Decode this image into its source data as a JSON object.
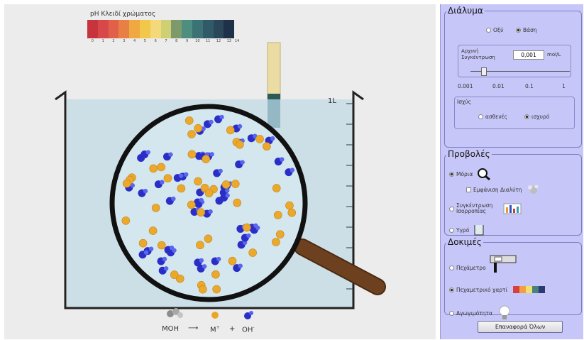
{
  "ph_scale": {
    "title": "pH Κλειδί χρώματος",
    "colors": [
      "#c8343d",
      "#d8484a",
      "#e0604a",
      "#e88045",
      "#f0a840",
      "#f2c84a",
      "#f3d97a",
      "#cfcf74",
      "#7c9a6a",
      "#4d8e80",
      "#3a7276",
      "#315a69",
      "#2a4658",
      "#1f3148"
    ],
    "labels": [
      "0",
      "1",
      "2",
      "3",
      "4",
      "5",
      "6",
      "7",
      "8",
      "9",
      "10",
      "11",
      "12",
      "13",
      "14"
    ]
  },
  "beaker": {
    "volume_label": "1L"
  },
  "equation": {
    "reactant": "MOH",
    "cation": "M",
    "cation_charge": "+",
    "plus": "+",
    "anion": "OH",
    "anion_charge": "-"
  },
  "panel": {
    "solution": {
      "title": "Διάλυμα",
      "acid_label": "Οξύ",
      "base_label": "Βάση",
      "selected": "base",
      "initial_conc_label": "Αρχική Συγκέντρωση",
      "conc_value": "0,001",
      "conc_unit": "mol/L",
      "slider_ticks": [
        "0.001",
        "0.01",
        "0.1",
        "1"
      ],
      "slider_position": 0,
      "strength_label": "Ισχύς",
      "weak_label": "ασθενές",
      "strong_label": "ισχυρό",
      "strength_selected": "strong"
    },
    "views": {
      "title": "Προβολές",
      "molecules_label": "Μόρια",
      "solvent_label": "Εμφάνιση Διαλύτη",
      "concentration_label": "Συγκέντρωση Ισορροπίας",
      "liquid_label": "Υγρό",
      "selected": "molecules"
    },
    "tests": {
      "title": "Δοκιμές",
      "ph_meter_label": "Πεχάμετρο",
      "ph_paper_label": "Πεχαμετρικό χαρτί",
      "conductivity_label": "Αγωγιμότητα",
      "selected": "ph_paper"
    },
    "reset_label": "Επαναφορά Όλων"
  }
}
